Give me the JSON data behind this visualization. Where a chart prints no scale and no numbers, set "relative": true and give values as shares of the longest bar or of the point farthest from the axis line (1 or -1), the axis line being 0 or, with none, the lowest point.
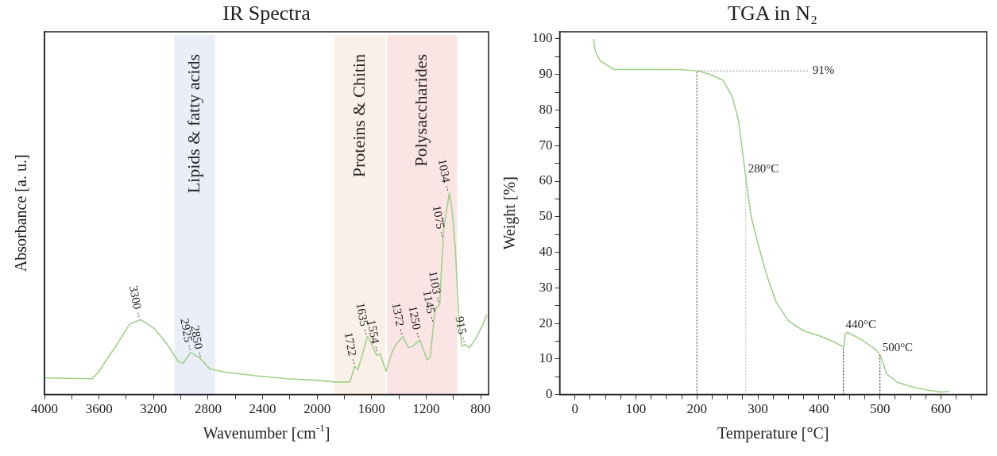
{
  "chart_data": [
    {
      "type": "line",
      "title": "IR Spectra",
      "xlabel": "Wavenumber [cm$^{-1}$]",
      "ylabel": "Absorbance [a. u.]",
      "relative": true,
      "tick_labels": "x",
      "color": "#9fd18b",
      "x": [
        4000,
        3653,
        3607,
        3469,
        3376,
        3295,
        3191,
        3099,
        3018,
        2983,
        2926,
        2856,
        2787,
        2683,
        2452,
        2221,
        1990,
        1874,
        1759,
        1724,
        1701,
        1666,
        1632,
        1609,
        1562,
        1539,
        1493,
        1447,
        1412,
        1371,
        1331,
        1297,
        1246,
        1193,
        1170,
        1135,
        1100,
        1089,
        1070,
        1030,
        1008,
        985,
        962,
        939,
        915,
        881,
        835,
        788,
        754
      ],
      "values": [
        0.082,
        0.078,
        0.109,
        0.248,
        0.349,
        0.372,
        0.326,
        0.248,
        0.163,
        0.155,
        0.209,
        0.178,
        0.127,
        0.112,
        0.093,
        0.078,
        0.07,
        0.062,
        0.062,
        0.14,
        0.124,
        0.202,
        0.287,
        0.264,
        0.194,
        0.202,
        0.116,
        0.217,
        0.256,
        0.287,
        0.233,
        0.24,
        0.271,
        0.171,
        0.186,
        0.419,
        0.45,
        0.605,
        0.829,
        1.0,
        0.907,
        0.713,
        0.403,
        0.24,
        0.248,
        0.233,
        0.279,
        0.341,
        0.395
      ],
      "xlim": [
        4000,
        742
      ],
      "xticks": [
        4000,
        {
          "value": 3800,
          "label": null
        },
        3600,
        {
          "value": 3400,
          "label": null
        },
        3200,
        {
          "value": 3000,
          "label": null
        },
        2800,
        {
          "value": 2600,
          "label": null
        },
        2400,
        {
          "value": 2200,
          "label": null
        },
        2000,
        {
          "value": 1800,
          "label": null
        },
        1600,
        {
          "value": 1400,
          "label": null
        },
        1200,
        {
          "value": 1000,
          "label": null
        },
        800
      ],
      "bands": [
        {
          "axis": "x",
          "from": 3048,
          "to": 2748,
          "label": "Lipids & fatty acids",
          "color": "#e9eef8"
        },
        {
          "axis": "x",
          "from": 1874,
          "to": 1500,
          "label": "Proteins & Chitin",
          "color": "#fbf0e8"
        },
        {
          "axis": "x",
          "from": 1486,
          "to": 973,
          "label": "Polysaccharides",
          "color": "#fbe4e4"
        }
      ],
      "annotations": [
        {
          "text": "3300",
          "x": 3300,
          "y": 0.372
        },
        {
          "text": "2925",
          "x": 2925,
          "y": 0.209
        },
        {
          "text": "2850",
          "x": 2850,
          "y": 0.174
        },
        {
          "text": "1722",
          "x": 1722,
          "y": 0.14
        },
        {
          "text": "1635",
          "x": 1635,
          "y": 0.287
        },
        {
          "text": "1554",
          "x": 1554,
          "y": 0.202
        },
        {
          "text": "1372",
          "x": 1372,
          "y": 0.287
        },
        {
          "text": "1250",
          "x": 1250,
          "y": 0.271
        },
        {
          "text": "1145",
          "x": 1145,
          "y": 0.35
        },
        {
          "text": "1103",
          "x": 1103,
          "y": 0.447
        },
        {
          "text": "1075",
          "x": 1075,
          "y": 0.77
        },
        {
          "text": "1034",
          "x": 1034,
          "y": 1.0
        },
        {
          "text": "915",
          "x": 915,
          "y": 0.248
        }
      ]
    },
    {
      "type": "line",
      "title": "TGA in N₂",
      "xlabel": "Temperature [°C]",
      "ylabel": "Weight [%]",
      "color": "#9fd18b",
      "x": [
        30.6,
        33,
        41,
        64,
        120,
        171,
        202,
        222,
        243,
        258,
        268,
        278,
        284,
        289,
        299,
        314,
        329,
        350,
        375,
        401,
        426,
        441,
        443,
        447,
        472,
        495,
        502,
        511,
        528,
        554,
        580,
        600,
        613
      ],
      "values": [
        100,
        96.7,
        93.9,
        91.4,
        91.4,
        91.4,
        91.0,
        90.0,
        88.3,
        83.7,
        77.2,
        64,
        56,
        50,
        43.1,
        33.8,
        26.3,
        20.7,
        17.9,
        16.5,
        14.7,
        13.3,
        17.0,
        17.5,
        15.2,
        12.4,
        10.5,
        5.8,
        3.5,
        2.1,
        1.2,
        0.7,
        0.9
      ],
      "xlim": [
        -25,
        675
      ],
      "ylim": [
        0,
        102
      ],
      "xticks": [
        0,
        {
          "value": 25,
          "label": null
        },
        {
          "value": 50,
          "label": null
        },
        {
          "value": 75,
          "label": null
        },
        100,
        {
          "value": 125,
          "label": null
        },
        {
          "value": 150,
          "label": null
        },
        {
          "value": 175,
          "label": null
        },
        200,
        {
          "value": 225,
          "label": null
        },
        {
          "value": 250,
          "label": null
        },
        {
          "value": 275,
          "label": null
        },
        300,
        {
          "value": 325,
          "label": null
        },
        {
          "value": 350,
          "label": null
        },
        {
          "value": 375,
          "label": null
        },
        400,
        {
          "value": 425,
          "label": null
        },
        {
          "value": 450,
          "label": null
        },
        {
          "value": 475,
          "label": null
        },
        500,
        {
          "value": 525,
          "label": null
        },
        {
          "value": 550,
          "label": null
        },
        {
          "value": 575,
          "label": null
        },
        600,
        {
          "value": 625,
          "label": null
        },
        {
          "value": 650,
          "label": null
        }
      ],
      "yticks": [
        0,
        {
          "value": 5,
          "label": null
        },
        10,
        {
          "value": 15,
          "label": null
        },
        20,
        {
          "value": 25,
          "label": null
        },
        30,
        {
          "value": 35,
          "label": null
        },
        40,
        {
          "value": 45,
          "label": null
        },
        50,
        {
          "value": 55,
          "label": null
        },
        60,
        {
          "value": 65,
          "label": null
        },
        70,
        {
          "value": 75,
          "label": null
        },
        80,
        {
          "value": 85,
          "label": null
        },
        90,
        {
          "value": 95,
          "label": null
        },
        100
      ],
      "ref_lines": [
        {
          "axis": "x",
          "value": 200,
          "color": "#555555",
          "line_style": "dotted"
        },
        {
          "axis": "y",
          "value": 91,
          "label": "91%",
          "color": "#888888",
          "line_style": "dotted"
        },
        {
          "axis": "x",
          "value": 280,
          "label": "280°C",
          "color": "#bbbbbb",
          "line_style": "dotted"
        },
        {
          "axis": "x",
          "value": 440,
          "label": "440°C",
          "color": "#333333",
          "line_style": "dotted"
        },
        {
          "axis": "x",
          "value": 500,
          "label": "500°C",
          "color": "#333333",
          "line_style": "dotted"
        }
      ]
    }
  ]
}
